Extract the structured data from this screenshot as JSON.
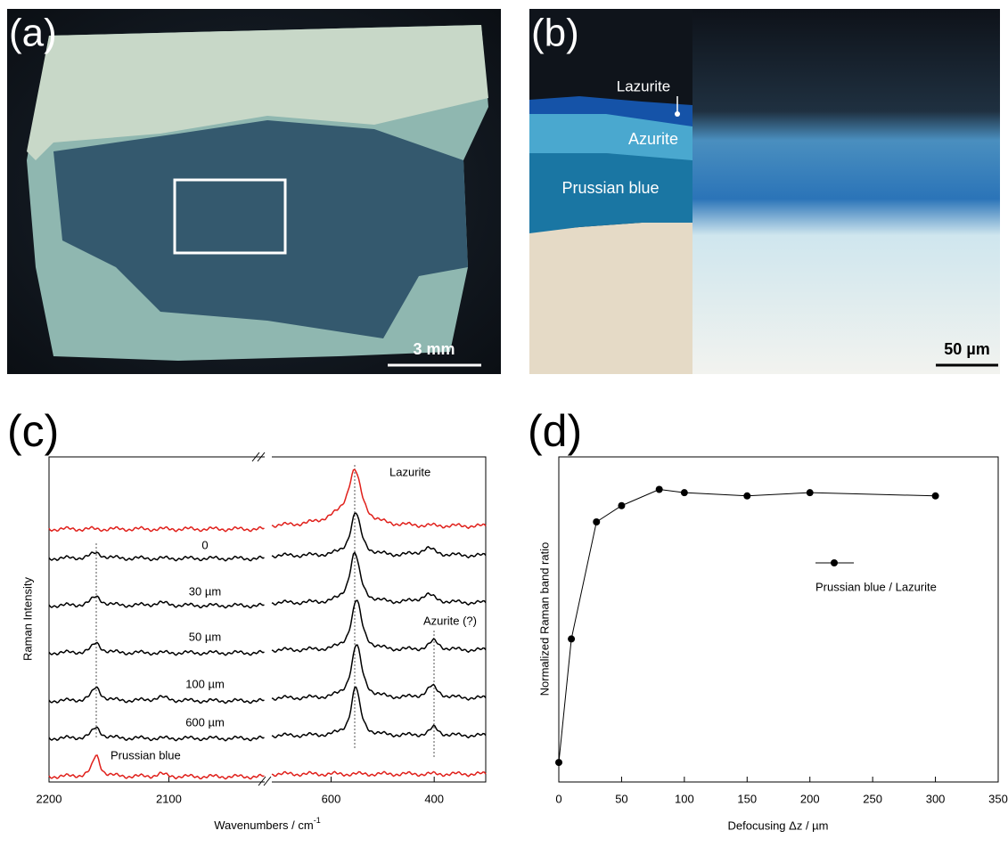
{
  "panels": {
    "a": {
      "label": "(a)",
      "scale_bar": "3 mm"
    },
    "b": {
      "label": "(b)",
      "layers": [
        "Lazurite",
        "Azurite",
        "Prussian blue"
      ],
      "scale_bar": "50 µm"
    },
    "c": {
      "label": "(c)",
      "y_label": "Raman Intensity",
      "x_label": "Wavenumbers / cm",
      "x_label_sup": "-1",
      "xlim_left": [
        2200,
        2020
      ],
      "xticks_left": [
        2200,
        2100
      ],
      "xlim_right": [
        715,
        300
      ],
      "xticks_right": [
        600,
        400
      ],
      "spectra_labels": [
        "Lazurite",
        "0",
        "30 µm",
        "50 µm",
        "100 µm",
        "600 µm",
        "Prussian blue"
      ],
      "annotation": "Azurite (?)"
    }
  },
  "chart_data": {
    "type": "line",
    "label": "(d)",
    "x_label": "Defocusing  Δz / µm",
    "y_label": "Normalized Raman band ratio",
    "x": [
      0,
      10,
      30,
      50,
      80,
      100,
      150,
      200,
      300
    ],
    "series": [
      {
        "name": "Prussian blue / Lazurite",
        "color": "#000000",
        "values": [
          0.06,
          0.44,
          0.8,
          0.85,
          0.9,
          0.89,
          0.88,
          0.89,
          0.88
        ]
      }
    ],
    "xlim": [
      0,
      350
    ],
    "xticks": [
      0,
      50,
      100,
      150,
      200,
      250,
      300,
      350
    ],
    "ylim": [
      0,
      1
    ]
  }
}
